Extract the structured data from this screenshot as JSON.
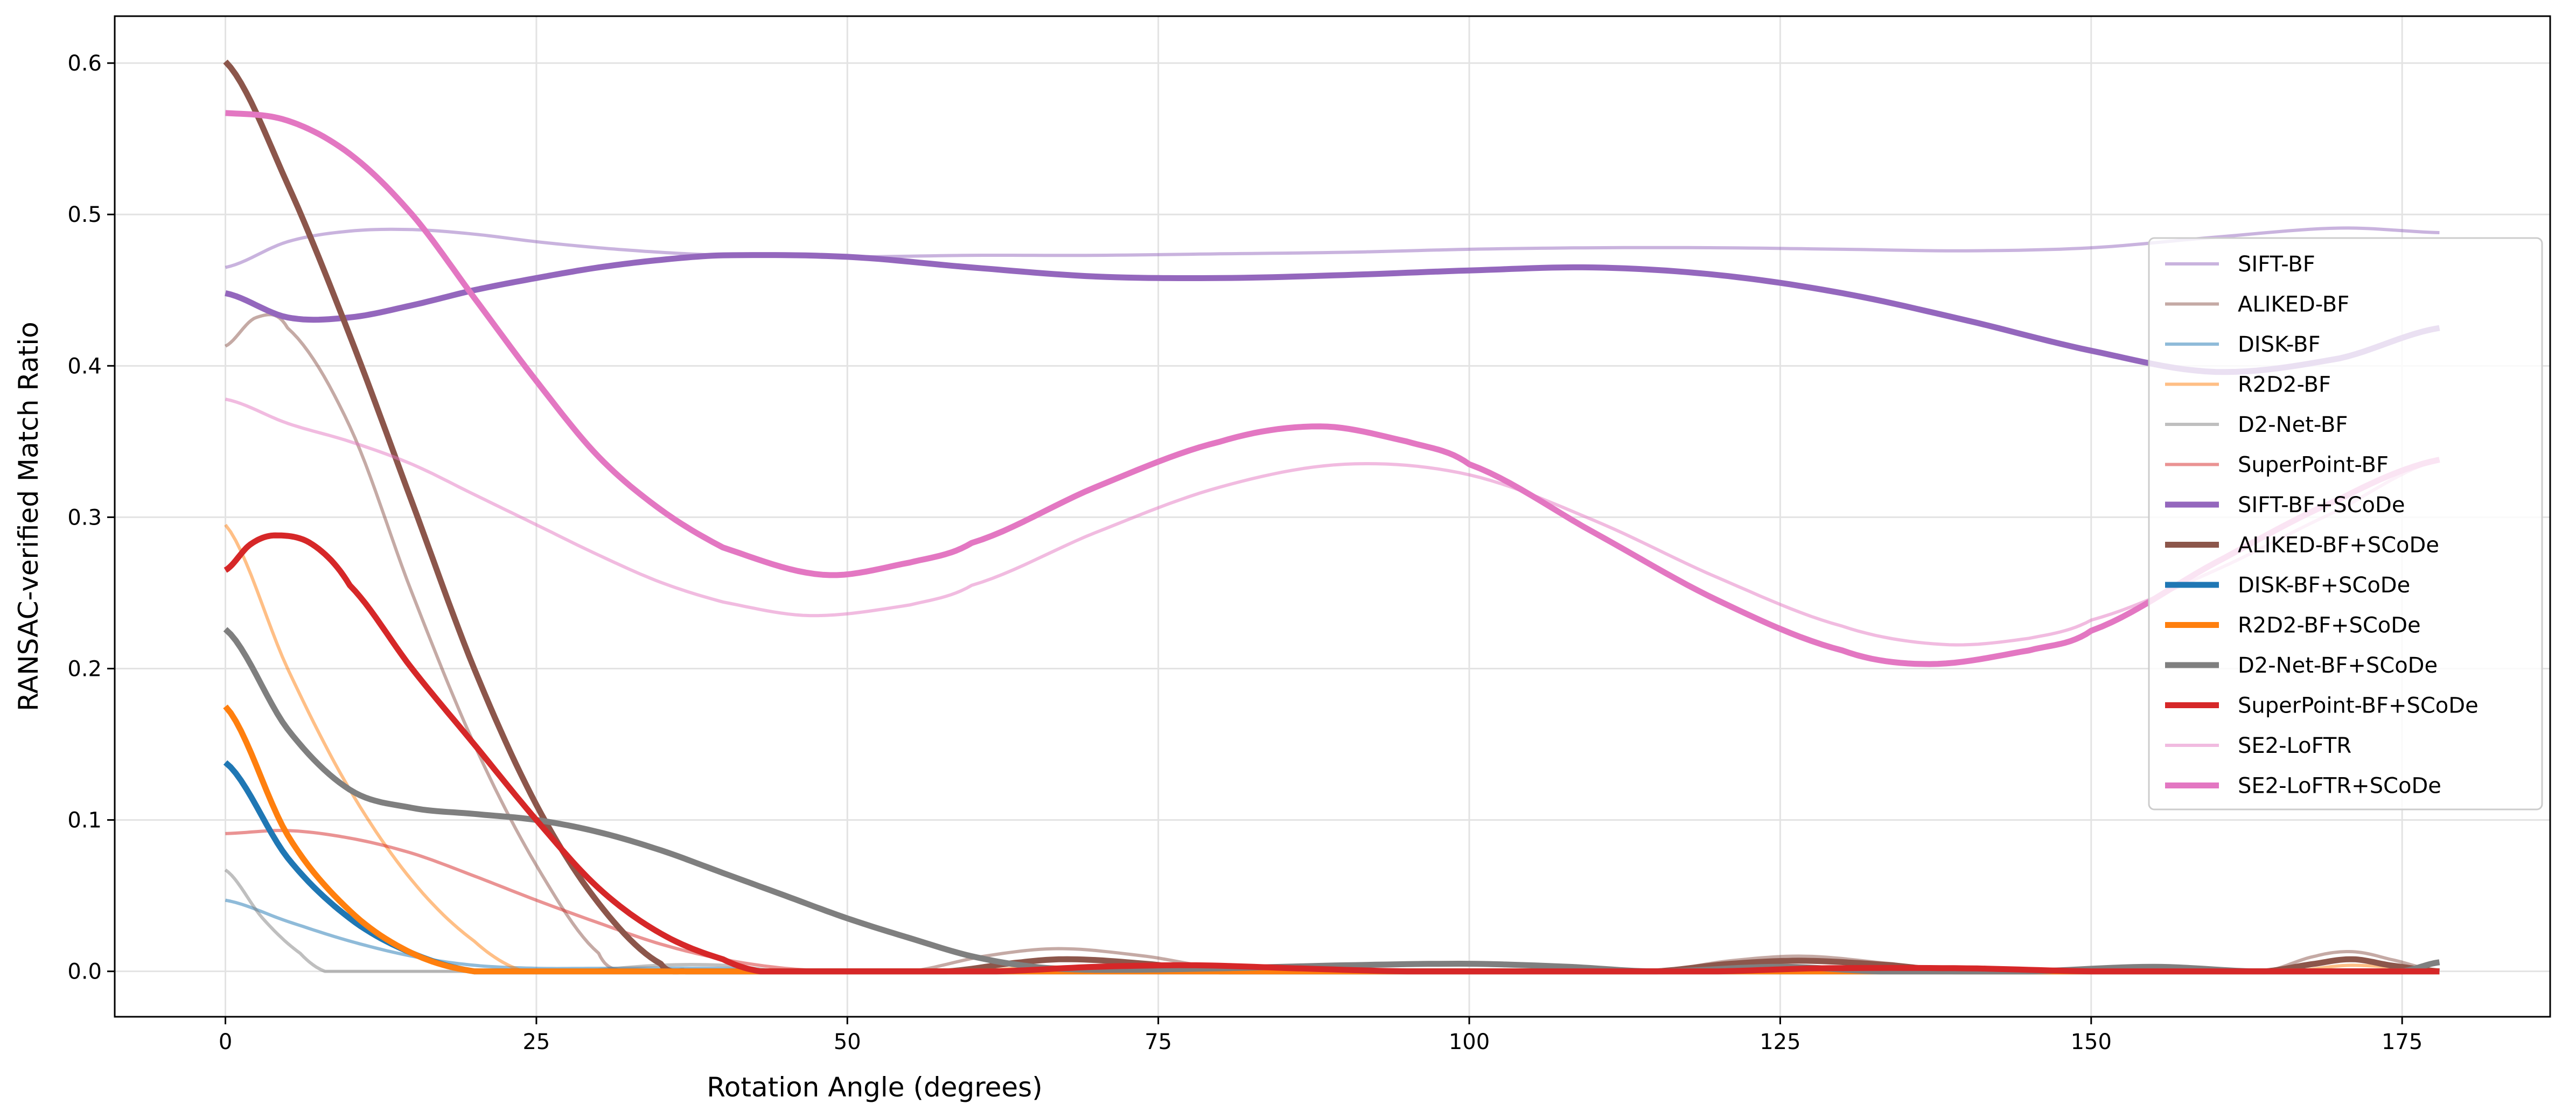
{
  "chart_data": {
    "type": "line",
    "title": "",
    "xlabel": "Rotation Angle (degrees)",
    "ylabel": "RANSAC-verified Match Ratio",
    "xlim": [
      -8.9,
      186.9
    ],
    "ylim": [
      -0.03,
      0.631
    ],
    "xticks": [
      0,
      25,
      50,
      75,
      100,
      125,
      150,
      175
    ],
    "yticks": [
      0.0,
      0.1,
      0.2,
      0.3,
      0.4,
      0.5,
      0.6
    ],
    "xtick_labels": [
      "0",
      "25",
      "50",
      "75",
      "100",
      "125",
      "150",
      "175"
    ],
    "ytick_labels": [
      "0.0",
      "0.1",
      "0.2",
      "0.3",
      "0.4",
      "0.5",
      "0.6"
    ],
    "grid": true,
    "legend_position": "center-right",
    "series": [
      {
        "name": "SIFT-BF",
        "color": "#9467bd",
        "alpha": 0.5,
        "thick": false,
        "points": [
          [
            0,
            0.465
          ],
          [
            5,
            0.482
          ],
          [
            10,
            0.489
          ],
          [
            15,
            0.49
          ],
          [
            20,
            0.487
          ],
          [
            25,
            0.482
          ],
          [
            30,
            0.478
          ],
          [
            35,
            0.475
          ],
          [
            40,
            0.473
          ],
          [
            50,
            0.472
          ],
          [
            60,
            0.473
          ],
          [
            70,
            0.473
          ],
          [
            80,
            0.474
          ],
          [
            90,
            0.475
          ],
          [
            100,
            0.477
          ],
          [
            110,
            0.478
          ],
          [
            120,
            0.478
          ],
          [
            130,
            0.477
          ],
          [
            140,
            0.476
          ],
          [
            150,
            0.478
          ],
          [
            160,
            0.485
          ],
          [
            170,
            0.491
          ],
          [
            178,
            0.488
          ]
        ]
      },
      {
        "name": "ALIKED-BF",
        "color": "#8c564b",
        "alpha": 0.5,
        "thick": false,
        "points": [
          [
            0,
            0.413
          ],
          [
            2.5,
            0.432
          ],
          [
            5,
            0.425
          ],
          [
            10,
            0.36
          ],
          [
            15,
            0.25
          ],
          [
            20,
            0.15
          ],
          [
            25,
            0.07
          ],
          [
            30,
            0.012
          ],
          [
            32,
            0
          ],
          [
            55,
            0
          ],
          [
            61,
            0.01
          ],
          [
            67,
            0.015
          ],
          [
            74,
            0.01
          ],
          [
            80,
            0.002
          ],
          [
            84,
            0
          ],
          [
            115,
            0
          ],
          [
            121,
            0.007
          ],
          [
            127,
            0.01
          ],
          [
            134,
            0.005
          ],
          [
            139,
            0
          ],
          [
            164,
            0
          ],
          [
            168,
            0.01
          ],
          [
            171,
            0.013
          ],
          [
            174,
            0.008
          ],
          [
            178,
            0
          ]
        ]
      },
      {
        "name": "DISK-BF",
        "color": "#1f77b4",
        "alpha": 0.5,
        "thick": false,
        "points": [
          [
            0,
            0.047
          ],
          [
            5,
            0.033
          ],
          [
            10,
            0.02
          ],
          [
            15,
            0.01
          ],
          [
            20,
            0.004
          ],
          [
            25,
            0.002
          ],
          [
            30,
            0.002
          ],
          [
            40,
            0.002
          ],
          [
            45,
            0
          ],
          [
            178,
            0
          ]
        ]
      },
      {
        "name": "R2D2-BF",
        "color": "#ff7f0e",
        "alpha": 0.5,
        "thick": false,
        "points": [
          [
            0,
            0.295
          ],
          [
            5,
            0.2
          ],
          [
            10,
            0.12
          ],
          [
            15,
            0.06
          ],
          [
            20,
            0.02
          ],
          [
            24,
            0
          ],
          [
            60,
            0
          ],
          [
            66,
            0.003
          ],
          [
            72,
            0
          ],
          [
            120,
            0
          ],
          [
            126,
            0.003
          ],
          [
            132,
            0
          ],
          [
            166,
            0
          ],
          [
            171,
            0.004
          ],
          [
            178,
            0
          ]
        ]
      },
      {
        "name": "D2-Net-BF",
        "color": "#7f7f7f",
        "alpha": 0.5,
        "thick": false,
        "points": [
          [
            0,
            0.067
          ],
          [
            3,
            0.035
          ],
          [
            6,
            0.012
          ],
          [
            8,
            0
          ],
          [
            28,
            0
          ],
          [
            35,
            0.004
          ],
          [
            40,
            0.004
          ],
          [
            45,
            0
          ],
          [
            178,
            0
          ]
        ]
      },
      {
        "name": "SuperPoint-BF",
        "color": "#d62728",
        "alpha": 0.5,
        "thick": false,
        "points": [
          [
            0,
            0.091
          ],
          [
            5,
            0.093
          ],
          [
            10,
            0.088
          ],
          [
            15,
            0.078
          ],
          [
            20,
            0.063
          ],
          [
            25,
            0.047
          ],
          [
            30,
            0.032
          ],
          [
            35,
            0.018
          ],
          [
            40,
            0.008
          ],
          [
            45,
            0.002
          ],
          [
            50,
            0
          ],
          [
            178,
            0
          ]
        ]
      },
      {
        "name": "SIFT-BF+SCoDe",
        "color": "#9467bd",
        "alpha": 1,
        "thick": true,
        "points": [
          [
            0,
            0.448
          ],
          [
            5,
            0.432
          ],
          [
            10,
            0.432
          ],
          [
            15,
            0.44
          ],
          [
            20,
            0.45
          ],
          [
            25,
            0.458
          ],
          [
            30,
            0.465
          ],
          [
            35,
            0.47
          ],
          [
            40,
            0.473
          ],
          [
            50,
            0.472
          ],
          [
            60,
            0.465
          ],
          [
            70,
            0.459
          ],
          [
            80,
            0.458
          ],
          [
            90,
            0.46
          ],
          [
            100,
            0.463
          ],
          [
            110,
            0.465
          ],
          [
            120,
            0.46
          ],
          [
            130,
            0.448
          ],
          [
            140,
            0.43
          ],
          [
            150,
            0.41
          ],
          [
            160,
            0.396
          ],
          [
            170,
            0.405
          ],
          [
            178,
            0.425
          ]
        ]
      },
      {
        "name": "ALIKED-BF+SCoDe",
        "color": "#8c564b",
        "alpha": 1,
        "thick": true,
        "points": [
          [
            0,
            0.601
          ],
          [
            5,
            0.52
          ],
          [
            10,
            0.42
          ],
          [
            15,
            0.31
          ],
          [
            20,
            0.2
          ],
          [
            25,
            0.11
          ],
          [
            30,
            0.045
          ],
          [
            35,
            0.005
          ],
          [
            37,
            0
          ],
          [
            58,
            0
          ],
          [
            64,
            0.006
          ],
          [
            68,
            0.008
          ],
          [
            74,
            0.005
          ],
          [
            80,
            0
          ],
          [
            115,
            0
          ],
          [
            121,
            0.005
          ],
          [
            127,
            0.007
          ],
          [
            134,
            0.004
          ],
          [
            139,
            0
          ],
          [
            164,
            0
          ],
          [
            168,
            0.005
          ],
          [
            171,
            0.008
          ],
          [
            174,
            0.004
          ],
          [
            178,
            0
          ]
        ]
      },
      {
        "name": "DISK-BF+SCoDe",
        "color": "#1f77b4",
        "alpha": 1,
        "thick": true,
        "points": [
          [
            0,
            0.138
          ],
          [
            5,
            0.075
          ],
          [
            10,
            0.035
          ],
          [
            15,
            0.012
          ],
          [
            20,
            0
          ],
          [
            178,
            0
          ]
        ]
      },
      {
        "name": "R2D2-BF+SCoDe",
        "color": "#ff7f0e",
        "alpha": 1,
        "thick": true,
        "points": [
          [
            0,
            0.175
          ],
          [
            5,
            0.09
          ],
          [
            10,
            0.04
          ],
          [
            15,
            0.012
          ],
          [
            20,
            0
          ],
          [
            178,
            0
          ]
        ]
      },
      {
        "name": "D2-Net-BF+SCoDe",
        "color": "#7f7f7f",
        "alpha": 1,
        "thick": true,
        "points": [
          [
            0,
            0.226
          ],
          [
            5,
            0.16
          ],
          [
            10,
            0.12
          ],
          [
            15,
            0.108
          ],
          [
            20,
            0.104
          ],
          [
            25,
            0.1
          ],
          [
            30,
            0.092
          ],
          [
            35,
            0.08
          ],
          [
            40,
            0.065
          ],
          [
            45,
            0.05
          ],
          [
            50,
            0.035
          ],
          [
            55,
            0.022
          ],
          [
            60,
            0.01
          ],
          [
            65,
            0.003
          ],
          [
            70,
            0.001
          ],
          [
            80,
            0.002
          ],
          [
            90,
            0.004
          ],
          [
            100,
            0.005
          ],
          [
            108,
            0.003
          ],
          [
            115,
            0
          ],
          [
            125,
            0.003
          ],
          [
            133,
            0
          ],
          [
            145,
            0
          ],
          [
            155,
            0.003
          ],
          [
            163,
            0
          ],
          [
            175,
            0
          ],
          [
            178,
            0.006
          ]
        ]
      },
      {
        "name": "SuperPoint-BF+SCoDe",
        "color": "#d62728",
        "alpha": 1,
        "thick": true,
        "points": [
          [
            0,
            0.265
          ],
          [
            2,
            0.282
          ],
          [
            4,
            0.288
          ],
          [
            7,
            0.282
          ],
          [
            10,
            0.255
          ],
          [
            15,
            0.2
          ],
          [
            20,
            0.15
          ],
          [
            25,
            0.1
          ],
          [
            30,
            0.055
          ],
          [
            35,
            0.025
          ],
          [
            40,
            0.008
          ],
          [
            43,
            0
          ],
          [
            62,
            0
          ],
          [
            70,
            0.003
          ],
          [
            78,
            0.004
          ],
          [
            86,
            0.002
          ],
          [
            95,
            0
          ],
          [
            120,
            0
          ],
          [
            128,
            0.002
          ],
          [
            140,
            0.002
          ],
          [
            150,
            0
          ],
          [
            178,
            0
          ]
        ]
      },
      {
        "name": "SE2-LoFTR",
        "color": "#e377c2",
        "alpha": 0.5,
        "thick": false,
        "points": [
          [
            0,
            0.378
          ],
          [
            5,
            0.362
          ],
          [
            10,
            0.35
          ],
          [
            15,
            0.335
          ],
          [
            20,
            0.315
          ],
          [
            25,
            0.295
          ],
          [
            30,
            0.275
          ],
          [
            35,
            0.257
          ],
          [
            40,
            0.244
          ],
          [
            47,
            0.235
          ],
          [
            55,
            0.242
          ],
          [
            60,
            0.255
          ],
          [
            70,
            0.29
          ],
          [
            80,
            0.32
          ],
          [
            90,
            0.335
          ],
          [
            100,
            0.328
          ],
          [
            110,
            0.298
          ],
          [
            120,
            0.26
          ],
          [
            130,
            0.228
          ],
          [
            138,
            0.216
          ],
          [
            145,
            0.22
          ],
          [
            150,
            0.232
          ],
          [
            160,
            0.265
          ],
          [
            170,
            0.305
          ],
          [
            178,
            0.338
          ]
        ]
      },
      {
        "name": "SE2-LoFTR+SCoDe",
        "color": "#e377c2",
        "alpha": 1,
        "thick": true,
        "points": [
          [
            0,
            0.567
          ],
          [
            5,
            0.562
          ],
          [
            10,
            0.54
          ],
          [
            15,
            0.5
          ],
          [
            20,
            0.445
          ],
          [
            25,
            0.39
          ],
          [
            30,
            0.34
          ],
          [
            35,
            0.305
          ],
          [
            40,
            0.28
          ],
          [
            48,
            0.262
          ],
          [
            55,
            0.27
          ],
          [
            60,
            0.283
          ],
          [
            70,
            0.32
          ],
          [
            80,
            0.35
          ],
          [
            88,
            0.36
          ],
          [
            95,
            0.35
          ],
          [
            100,
            0.335
          ],
          [
            110,
            0.29
          ],
          [
            120,
            0.245
          ],
          [
            130,
            0.212
          ],
          [
            137,
            0.203
          ],
          [
            145,
            0.212
          ],
          [
            150,
            0.225
          ],
          [
            160,
            0.27
          ],
          [
            170,
            0.312
          ],
          [
            178,
            0.338
          ]
        ]
      }
    ]
  }
}
